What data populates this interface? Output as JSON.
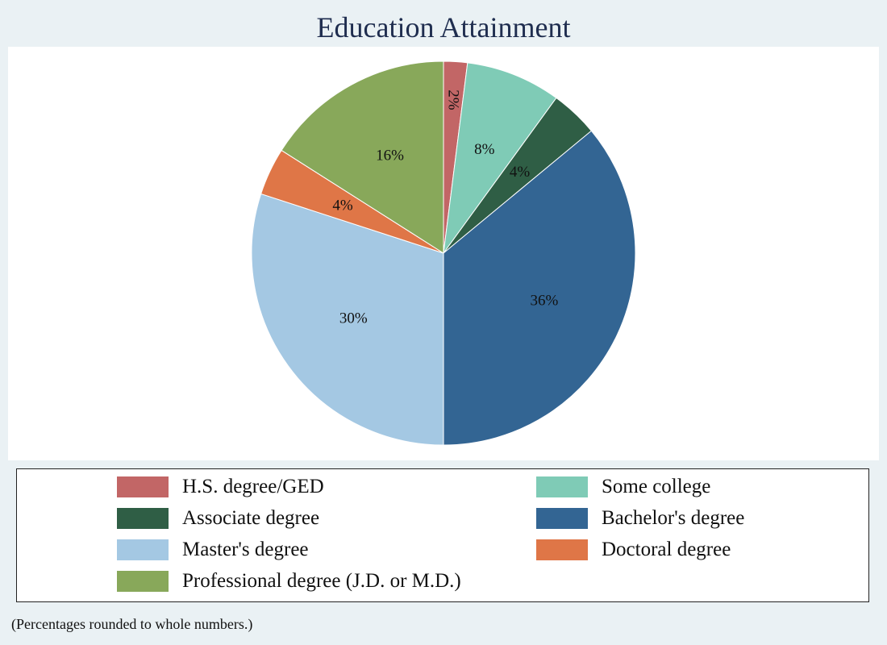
{
  "chart_data": {
    "type": "pie",
    "title": "Education Attainment",
    "slices": [
      {
        "label": "H.S. degree/GED",
        "value": 2,
        "value_label": "2%",
        "color": "#c26666"
      },
      {
        "label": "Some college",
        "value": 8,
        "value_label": "8%",
        "color": "#7fcbb6"
      },
      {
        "label": "Associate degree",
        "value": 4,
        "value_label": "4%",
        "color": "#2f5e45"
      },
      {
        "label": "Bachelor's degree",
        "value": 36,
        "value_label": "36%",
        "color": "#336593"
      },
      {
        "label": "Master's degree",
        "value": 30,
        "value_label": "30%",
        "color": "#a4c8e3"
      },
      {
        "label": "Doctoral degree",
        "value": 4,
        "value_label": "4%",
        "color": "#df7647"
      },
      {
        "label": "Professional degree (J.D. or M.D.)",
        "value": 16,
        "value_label": "16%",
        "color": "#88a85a"
      }
    ],
    "legend_order": [
      "H.S. degree/GED",
      "Some college",
      "Associate degree",
      "Bachelor's degree",
      "Master's degree",
      "Doctoral degree",
      "Professional degree (J.D. or M.D.)"
    ],
    "legend_placement": "bottom",
    "start_angle": "12 o'clock",
    "direction": "clockwise",
    "note": "(Percentages rounded to whole numbers.)"
  }
}
